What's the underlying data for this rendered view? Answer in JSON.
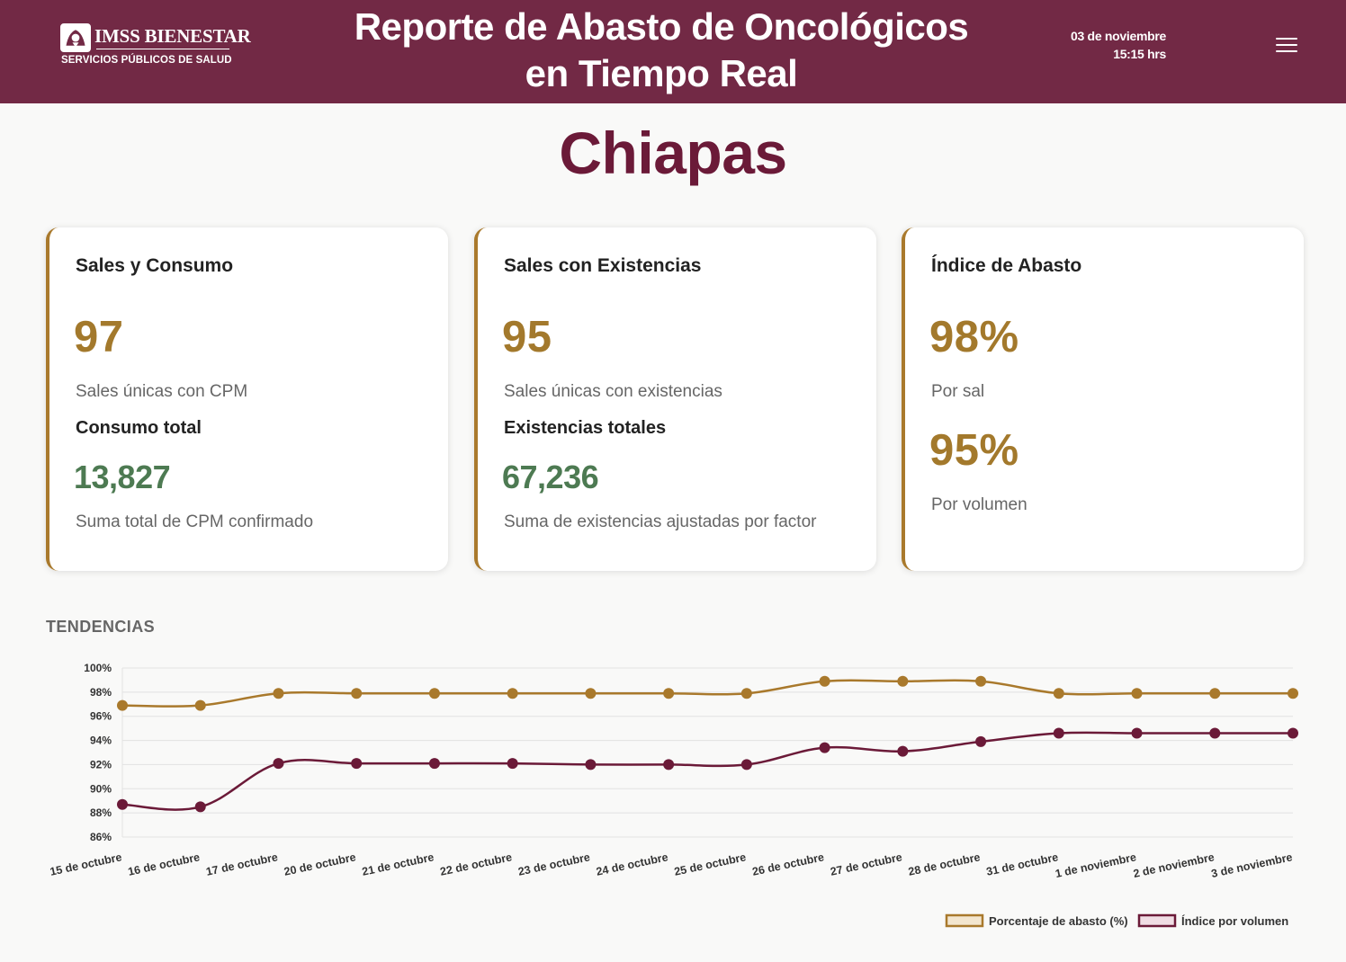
{
  "header": {
    "logo_name": "IMSS BIENESTAR",
    "logo_subtitle": "SERVICIOS PÚBLICOS DE SALUD",
    "title_line1": "Reporte de Abasto de Oncológicos",
    "title_line2": "en Tiempo Real",
    "date": "03 de noviembre",
    "time": "15:15 hrs",
    "menu_icon": "hamburger-menu-icon"
  },
  "state": "Chiapas",
  "cards": {
    "sales_consumo": {
      "title": "Sales y Consumo",
      "value": "97",
      "value_label": "Sales únicas con CPM",
      "subtitle": "Consumo total",
      "subvalue": "13,827",
      "subvalue_label": "Suma total de CPM confirmado"
    },
    "sales_existencias": {
      "title": "Sales con Existencias",
      "value": "95",
      "value_label": "Sales únicas con existencias",
      "subtitle": "Existencias totales",
      "subvalue": "67,236",
      "subvalue_label": "Suma de existencias ajustadas por factor"
    },
    "indice_abasto": {
      "title": "Índice de Abasto",
      "value": "98%",
      "value_label": "Por sal",
      "value2": "95%",
      "value2_label": "Por volumen"
    }
  },
  "colors": {
    "brand": "#722945",
    "accent_gold": "#a3792c",
    "accent_green": "#4d7a52",
    "series_gold": "#a9792c",
    "series_maroon": "#6b1a38"
  },
  "trends": {
    "title": "TENDENCIAS"
  },
  "chart_data": {
    "type": "line",
    "x": [
      "15 de octubre",
      "16 de octubre",
      "17 de octubre",
      "20 de octubre",
      "21 de octubre",
      "22 de octubre",
      "23 de octubre",
      "24 de octubre",
      "25 de octubre",
      "26 de octubre",
      "27 de octubre",
      "28 de octubre",
      "31 de octubre",
      "1 de noviembre",
      "2 de noviembre",
      "3 de noviembre"
    ],
    "series": [
      {
        "name": "Porcentaje de abasto (%)",
        "color": "#a9792c",
        "values": [
          96.9,
          96.9,
          97.9,
          97.9,
          97.9,
          97.9,
          97.9,
          97.9,
          97.9,
          98.9,
          98.9,
          98.9,
          97.9,
          97.9,
          97.9,
          97.9
        ]
      },
      {
        "name": "Índice por volumen",
        "color": "#6b1a38",
        "values": [
          88.7,
          88.5,
          92.1,
          92.1,
          92.1,
          92.1,
          92.0,
          92.0,
          92.0,
          93.4,
          93.1,
          93.9,
          94.6,
          94.6,
          94.6,
          94.6
        ]
      }
    ],
    "ylim": [
      86,
      100
    ],
    "yticks": [
      86,
      88,
      90,
      92,
      94,
      96,
      98,
      100
    ],
    "ytick_labels": [
      "86%",
      "88%",
      "90%",
      "92%",
      "94%",
      "96%",
      "98%",
      "100%"
    ],
    "grid": true,
    "legend_position": "bottom-right"
  }
}
